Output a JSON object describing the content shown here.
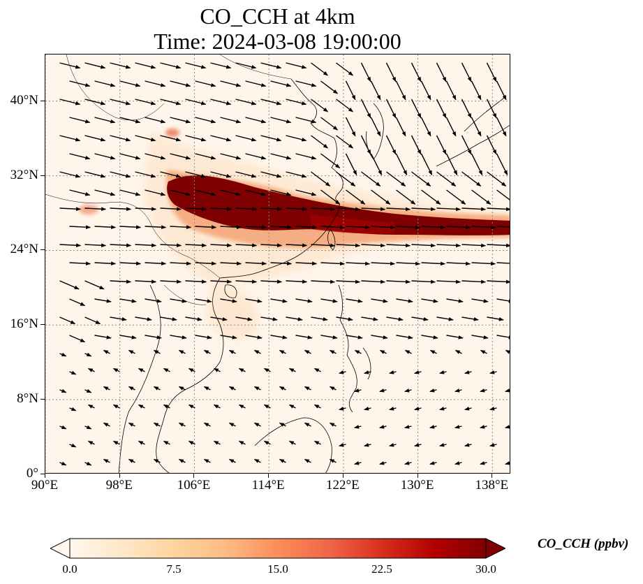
{
  "title_line1": "CO_CCH at 4km",
  "title_line2": "Time: 2024-03-08 19:00:00",
  "map": {
    "lon_range": [
      90,
      140
    ],
    "lat_range": [
      0,
      45
    ],
    "lat_ticks": [
      {
        "value": 40,
        "label": "40°N"
      },
      {
        "value": 32,
        "label": "32°N"
      },
      {
        "value": 24,
        "label": "24°N"
      },
      {
        "value": 16,
        "label": "16°N"
      },
      {
        "value": 8,
        "label": "8°N"
      },
      {
        "value": 0,
        "label": "0°"
      }
    ],
    "lon_ticks": [
      {
        "value": 90,
        "label": "90°E"
      },
      {
        "value": 98,
        "label": "98°E"
      },
      {
        "value": 106,
        "label": "106°E"
      },
      {
        "value": 114,
        "label": "114°E"
      },
      {
        "value": 122,
        "label": "122°E"
      },
      {
        "value": 130,
        "label": "130°E"
      },
      {
        "value": 138,
        "label": "138°E"
      }
    ],
    "gridlines": true,
    "background_color": "#fff5eb",
    "coastline_color": "#000000"
  },
  "colorbar": {
    "label": "CO_CCH (ppbv)",
    "min": 0.0,
    "max": 30.0,
    "ticks": [
      "0.0",
      "7.5",
      "15.0",
      "22.5",
      "30.0"
    ],
    "extend": "both",
    "colormap": "OrRd",
    "colors": [
      "#fff7ec",
      "#fee8c8",
      "#fdd49e",
      "#fdbb84",
      "#fc8d59",
      "#ef6548",
      "#d7301f",
      "#b30000",
      "#7f0000"
    ]
  }
}
